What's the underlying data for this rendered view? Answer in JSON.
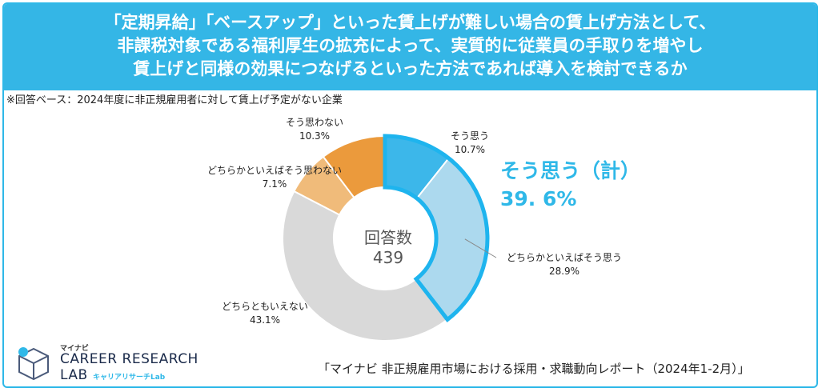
{
  "header": {
    "lines": [
      "「定期昇給」「ベースアップ」といった賃上げが難しい場合の賃上げ方法として、",
      "非課税対象である福利厚生の拡充によって、実質的に従業員の手取りを増やし",
      "賃上げと同様の効果につなげるといった方法であれば導入を検討できるか"
    ]
  },
  "note": "※回答ベース：2024年度に非正規雇用者に対して賃上げ予定がない企業",
  "center": {
    "label": "回答数",
    "value": "439"
  },
  "highlight": {
    "label": "そう思う（計）",
    "value": "39. 6%"
  },
  "source": "「マイナビ 非正規雇用市場における採用・求職動向レポート（2024年1-2月）」",
  "logo": {
    "small": "マイナビ",
    "line1": "CAREER RESEARCH",
    "line2": "LAB",
    "line3": "キャリアリサーチLab"
  },
  "chart_data": {
    "type": "pie",
    "donut": true,
    "total": 439,
    "slices": [
      {
        "label": "そう思う",
        "value": 10.7,
        "pct": "10.7%",
        "color": "#3cb7ea"
      },
      {
        "label": "どちらかといえばそう思う",
        "value": 28.9,
        "pct": "28.9%",
        "color": "#acd9ee"
      },
      {
        "label": "どちらともいえない",
        "value": 43.1,
        "pct": "43.1%",
        "color": "#d9d9d9"
      },
      {
        "label": "どちらかといえばそう思わない",
        "value": 7.1,
        "pct": "7.1%",
        "color": "#f0bb7a"
      },
      {
        "label": "そう思わない",
        "value": 10.3,
        "pct": "10.3%",
        "color": "#eb9a3c"
      }
    ],
    "highlight_group": [
      "そう思う",
      "どちらかといえばそう思う"
    ],
    "highlight_color": "#1eb4ee"
  }
}
